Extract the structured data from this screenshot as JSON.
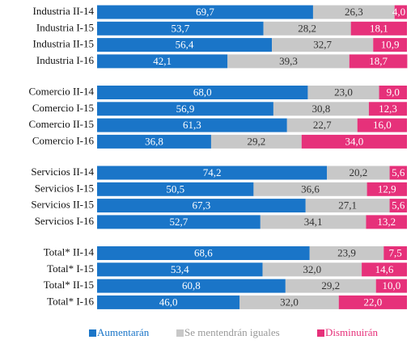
{
  "chart_data": {
    "type": "stacked-bar-horizontal",
    "categories": [
      "Industria II-14",
      "Industria I-15",
      "Industria II-15",
      "Industria I-16",
      "Comercio II-14",
      "Comercio I-15",
      "Comercio II-15",
      "Comercio I-16",
      "Servicios II-14",
      "Servicios I-15",
      "Servicios II-15",
      "Servicios I-16",
      "Total* II-14",
      "Total* I-15",
      "Total* II-15",
      "Total* I-16"
    ],
    "xlim": [
      0,
      100
    ],
    "legend": "bottom",
    "series": [
      {
        "name": "Aumentarán",
        "color": "#1a75c8",
        "values": [
          69.7,
          53.7,
          56.4,
          42.1,
          68.0,
          56.9,
          61.3,
          36.8,
          74.2,
          50.5,
          67.3,
          52.7,
          68.6,
          53.4,
          60.8,
          46.0
        ],
        "value_labels": [
          "69,7",
          "53,7",
          "56,4",
          "42,1",
          "68,0",
          "56,9",
          "61,3",
          "36,8",
          "74,2",
          "50,5",
          "67,3",
          "52,7",
          "68,6",
          "53,4",
          "60,8",
          "46,0"
        ]
      },
      {
        "name": "Se mentendrán iguales",
        "color": "#c8c8c8",
        "values": [
          26.3,
          28.2,
          32.7,
          39.3,
          23.0,
          30.8,
          22.7,
          29.2,
          20.2,
          36.6,
          27.1,
          34.1,
          23.9,
          32.0,
          29.2,
          32.0
        ],
        "value_labels": [
          "26,3",
          "28,2",
          "32,7",
          "39,3",
          "23,0",
          "30,8",
          "22,7",
          "29,2",
          "20,2",
          "36,6",
          "27,1",
          "34,1",
          "23,9",
          "32,0",
          "29,2",
          "32,0"
        ]
      },
      {
        "name": "Disminuirán",
        "color": "#e6317a",
        "values": [
          4.0,
          18.1,
          10.9,
          18.7,
          9.0,
          12.3,
          16.0,
          34.0,
          5.6,
          12.9,
          5.6,
          13.2,
          7.5,
          14.6,
          10.0,
          22.0
        ],
        "value_labels": [
          "4,0",
          "18,1",
          "10,9",
          "18,7",
          "9,0",
          "12,3",
          "16,0",
          "34,0",
          "5,6",
          "12,9",
          "5,6",
          "13,2",
          "7,5",
          "14,6",
          "10,0",
          "22,0"
        ]
      }
    ]
  }
}
